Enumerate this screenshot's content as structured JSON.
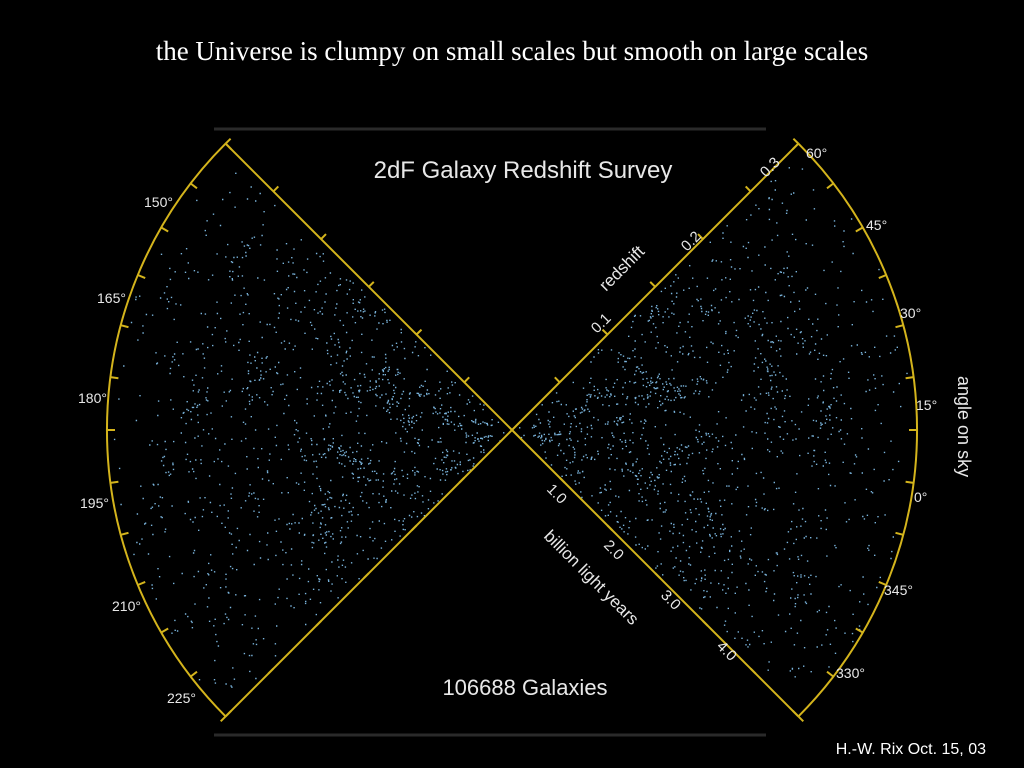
{
  "slide": {
    "title": "the Universe is clumpy on small scales but smooth on large scales",
    "credit": "H.-W. Rix Oct. 15, 03"
  },
  "figure": {
    "title": "2dF Galaxy Redshift Survey",
    "count_label": "106688 Galaxies",
    "redshift_axis_label": "redshift",
    "redshift_ticks": [
      "0.1",
      "0.2",
      "0.3"
    ],
    "distance_axis_label": "billion light years",
    "distance_ticks": [
      "1.0",
      "2.0",
      "3.0",
      "4.0"
    ],
    "angle_axis_label": "angle on sky",
    "left_angles": [
      "150°",
      "165°",
      "180°",
      "195°",
      "210°",
      "225°"
    ],
    "right_angles": [
      "60°",
      "45°",
      "30°",
      "15°",
      "0°",
      "345°",
      "330°"
    ],
    "colors": {
      "background": "#000000",
      "axes": "#d4b41c",
      "galaxies": "#7ab4dc",
      "text": "#e8e8e8"
    }
  }
}
